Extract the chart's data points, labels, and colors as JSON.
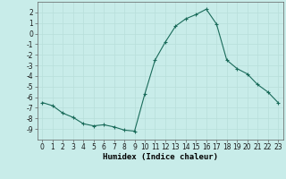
{
  "x": [
    0,
    1,
    2,
    3,
    4,
    5,
    6,
    7,
    8,
    9,
    10,
    11,
    12,
    13,
    14,
    15,
    16,
    17,
    18,
    19,
    20,
    21,
    22,
    23
  ],
  "y": [
    -6.5,
    -6.8,
    -7.5,
    -7.9,
    -8.5,
    -8.7,
    -8.6,
    -8.8,
    -9.1,
    -9.2,
    -5.7,
    -2.5,
    -0.8,
    0.7,
    1.4,
    1.8,
    2.3,
    0.9,
    -2.5,
    -3.3,
    -3.8,
    -4.8,
    -5.5,
    -6.5
  ],
  "bg_color": "#c8ece9",
  "grid_color": "#b8deda",
  "line_color": "#1a6b5a",
  "marker_color": "#1a6b5a",
  "xlabel": "Humidex (Indice chaleur)",
  "ylim": [
    -10,
    3
  ],
  "xlim": [
    -0.5,
    23.5
  ],
  "yticks": [
    2,
    1,
    0,
    -1,
    -2,
    -3,
    -4,
    -5,
    -6,
    -7,
    -8,
    -9
  ],
  "xticks": [
    0,
    1,
    2,
    3,
    4,
    5,
    6,
    7,
    8,
    9,
    10,
    11,
    12,
    13,
    14,
    15,
    16,
    17,
    18,
    19,
    20,
    21,
    22,
    23
  ],
  "tick_fontsize": 5.5,
  "xlabel_fontsize": 6.5
}
